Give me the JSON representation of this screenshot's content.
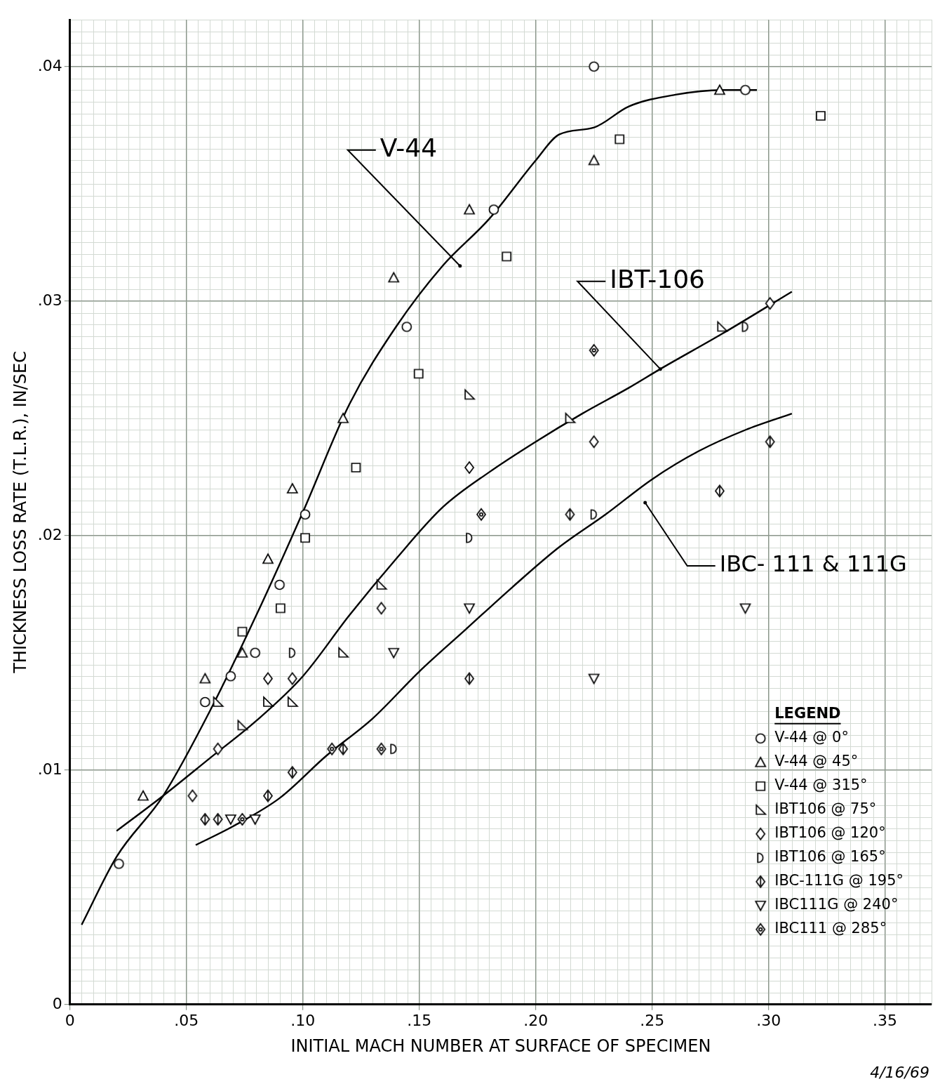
{
  "chart_data": {
    "type": "scatter",
    "x_label": "INITIAL MACH NUMBER AT SURFACE OF SPECIMEN",
    "y_label": "THICKNESS LOSS RATE (T.L.R.), IN/SEC",
    "xlim": [
      0,
      0.37
    ],
    "ylim": [
      0,
      0.042
    ],
    "xticks": [
      0,
      {
        "value": 0.05,
        "label": ".05"
      },
      {
        "value": 0.1,
        "label": ".10"
      },
      {
        "value": 0.15,
        "label": ".15"
      },
      {
        "value": 0.2,
        "label": ".20"
      },
      {
        "value": 0.25,
        "label": ".25"
      },
      {
        "value": 0.3,
        "label": ".30"
      },
      {
        "value": 0.35,
        "label": ".35"
      }
    ],
    "yticks": [
      0,
      {
        "value": 0.01,
        "label": ".01"
      },
      {
        "value": 0.02,
        "label": ".02"
      },
      {
        "value": 0.03,
        "label": ".03"
      },
      {
        "value": 0.04,
        "label": ".04"
      }
    ],
    "grid": true,
    "legend": "lower right",
    "legend_title": "LEGEND",
    "date_note": "4/16/69",
    "annotations": [
      {
        "text": "V-44",
        "x": 0.1675,
        "y": 0.0315
      },
      {
        "text": "IBT-106",
        "x": 0.2535,
        "y": 0.0271
      },
      {
        "text": "IBC- 111 & 111G",
        "x": 0.247,
        "y": 0.0214
      }
    ],
    "series": [
      {
        "name": "V-44 @ 0°",
        "type": "scatter",
        "marker": "circle",
        "color": "#000000",
        "x": [
          0.225,
          0.29,
          0.182,
          0.1446,
          0.101,
          0.09,
          0.0795,
          0.058,
          0.069,
          0.021
        ],
        "values": [
          0.04,
          0.039,
          0.0339,
          0.0289,
          0.0209,
          0.0179,
          0.015,
          0.0129,
          0.014,
          0.006
        ]
      },
      {
        "name": "V-44 @ 45°",
        "type": "scatter",
        "marker": "triangle",
        "color": "#000000",
        "x": [
          0.279,
          0.225,
          0.1715,
          0.139,
          0.1173,
          0.0955,
          0.085,
          0.074,
          0.058,
          0.0314
        ],
        "values": [
          0.039,
          0.036,
          0.0339,
          0.031,
          0.025,
          0.022,
          0.019,
          0.015,
          0.0139,
          0.0089
        ]
      },
      {
        "name": "V-44 @ 315°",
        "type": "scatter",
        "marker": "square",
        "color": "#000000",
        "x": [
          0.3224,
          0.236,
          0.1875,
          0.1497,
          0.1228,
          0.101,
          0.0904,
          0.074
        ],
        "values": [
          0.0379,
          0.0369,
          0.0319,
          0.0269,
          0.0229,
          0.0199,
          0.0169,
          0.0159
        ]
      },
      {
        "name": "IBT106 @ 75°",
        "type": "scatter",
        "marker": "right_triangle",
        "color": "#000000",
        "x": [
          0.28,
          0.1715,
          0.2147,
          0.1337,
          0.1173,
          0.0635,
          0.085,
          0.0955,
          0.074
        ],
        "values": [
          0.0289,
          0.026,
          0.025,
          0.0179,
          0.015,
          0.0129,
          0.0129,
          0.0129,
          0.0119
        ]
      },
      {
        "name": "IBT106 @ 120°",
        "type": "scatter",
        "marker": "diamond",
        "color": "#000000",
        "x": [
          0.3006,
          0.1715,
          0.225,
          0.1337,
          0.085,
          0.0955,
          0.0635,
          0.0526
        ],
        "values": [
          0.0299,
          0.0229,
          0.024,
          0.0169,
          0.0139,
          0.0139,
          0.0109,
          0.0089
        ]
      },
      {
        "name": "IBT106 @ 165°",
        "type": "scatter",
        "marker": "half_circle",
        "color": "#000000",
        "x": [
          0.29,
          0.225,
          0.1715,
          0.0955,
          0.139
        ],
        "values": [
          0.0289,
          0.0209,
          0.0199,
          0.015,
          0.0109
        ]
      },
      {
        "name": "IBC-111G @ 195°",
        "type": "scatter",
        "marker": "diamond_bar",
        "color": "#000000",
        "x": [
          0.3006,
          0.279,
          0.2147,
          0.1715,
          0.1173,
          0.0955,
          0.085,
          0.0635,
          0.058
        ],
        "values": [
          0.024,
          0.0219,
          0.0209,
          0.0139,
          0.0109,
          0.0099,
          0.0089,
          0.0079,
          0.0079
        ]
      },
      {
        "name": "IBC111G @ 240°",
        "type": "scatter",
        "marker": "triangle_down",
        "color": "#000000",
        "x": [
          0.29,
          0.1715,
          0.139,
          0.225,
          0.0795,
          0.069
        ],
        "values": [
          0.0169,
          0.0169,
          0.015,
          0.0139,
          0.0079,
          0.0079
        ]
      },
      {
        "name": "IBC111 @ 285°",
        "type": "scatter",
        "marker": "diamond_dot",
        "color": "#000000",
        "x": [
          0.225,
          0.1766,
          0.1125,
          0.1337,
          0.074
        ],
        "values": [
          0.0279,
          0.0209,
          0.0109,
          0.0109,
          0.0079
        ]
      },
      {
        "type": "line",
        "marker": "none",
        "line_style": "solid",
        "color": "#000000",
        "x": [
          0.005,
          0.02,
          0.04,
          0.06,
          0.08,
          0.1,
          0.12,
          0.14,
          0.16,
          0.18,
          0.2,
          0.21,
          0.225,
          0.24,
          0.26,
          0.28,
          0.295
        ],
        "values": [
          0.0034,
          0.0063,
          0.0089,
          0.0125,
          0.0166,
          0.021,
          0.0256,
          0.0289,
          0.0315,
          0.0335,
          0.036,
          0.0371,
          0.0374,
          0.0383,
          0.0388,
          0.039,
          0.039
        ]
      },
      {
        "type": "line",
        "marker": "none",
        "line_style": "solid",
        "color": "#000000",
        "x": [
          0.02,
          0.04,
          0.06,
          0.08,
          0.1,
          0.12,
          0.14,
          0.16,
          0.18,
          0.2,
          0.22,
          0.24,
          0.2535,
          0.28,
          0.31
        ],
        "values": [
          0.0074,
          0.0089,
          0.0105,
          0.0121,
          0.014,
          0.0166,
          0.019,
          0.0212,
          0.0227,
          0.024,
          0.0252,
          0.0263,
          0.0271,
          0.0286,
          0.0304
        ]
      },
      {
        "type": "line",
        "marker": "none",
        "line_style": "solid",
        "color": "#000000",
        "x": [
          0.054,
          0.07,
          0.09,
          0.11,
          0.13,
          0.15,
          0.17,
          0.19,
          0.21,
          0.23,
          0.25,
          0.27,
          0.29,
          0.31
        ],
        "values": [
          0.0068,
          0.0076,
          0.0088,
          0.0106,
          0.0122,
          0.0142,
          0.016,
          0.0178,
          0.0195,
          0.0209,
          0.0224,
          0.0236,
          0.0245,
          0.0252
        ]
      }
    ]
  }
}
